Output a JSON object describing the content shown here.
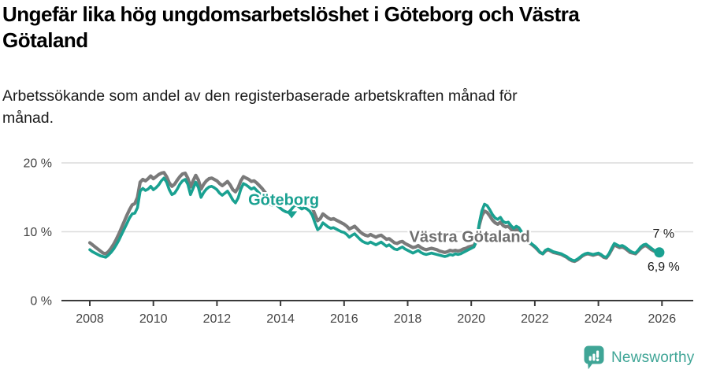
{
  "header": {
    "title": "Ungefär lika hög ungdomsarbetslöshet i Göteborg och Västra\nGötaland",
    "subtitle": "Arbetssökande som andel av den registerbaserade arbetskraften månad för\nmånad."
  },
  "chart_data": {
    "type": "line",
    "title": "Ungefär lika hög ungdomsarbetslöshet i Göteborg och Västra Götaland",
    "subtitle": "Arbetssökande som andel av den registerbaserade arbetskraften månad för månad.",
    "x_start": 2008.0,
    "x_step_months": 1,
    "x_axis": {
      "ticks": [
        2008,
        2010,
        2012,
        2014,
        2016,
        2018,
        2020,
        2022,
        2024,
        2026
      ],
      "labels": [
        "2008",
        "2010",
        "2012",
        "2014",
        "2016",
        "2018",
        "2020",
        "2022",
        "2024",
        "2026"
      ]
    },
    "y_axis": {
      "ticks": [
        0,
        10,
        20
      ],
      "labels": [
        "0 %",
        "10 %",
        "20 %"
      ],
      "range": [
        0,
        22
      ],
      "grid": true
    },
    "colors": {
      "goteborg": "#1aa191",
      "vastra_gotaland": "#7a7a7a",
      "grid": "#dcdcdc",
      "axis": "#3a3a3a"
    },
    "series": [
      {
        "name": "Västra Götaland",
        "color": "#7a7a7a",
        "label": {
          "text": "Västra Götaland",
          "x": 2019.95,
          "y": 8.5,
          "color": "#6f6f6f"
        },
        "last_value_label": "6,9 %",
        "values": [
          8.4,
          8.1,
          7.8,
          7.5,
          7.2,
          6.9,
          6.8,
          7.1,
          7.6,
          8.2,
          8.9,
          9.7,
          10.6,
          11.5,
          12.4,
          13.2,
          13.9,
          14.1,
          15.0,
          17.2,
          17.6,
          17.4,
          17.7,
          18.1,
          17.7,
          18.0,
          18.3,
          18.5,
          18.6,
          18.0,
          17.1,
          16.6,
          16.9,
          17.5,
          18.0,
          18.4,
          18.5,
          17.8,
          16.5,
          17.4,
          18.2,
          17.5,
          16.2,
          16.9,
          17.4,
          17.7,
          17.8,
          17.6,
          17.4,
          17.0,
          16.7,
          17.0,
          17.3,
          16.8,
          16.1,
          15.8,
          16.4,
          17.4,
          18.0,
          17.8,
          17.6,
          17.3,
          17.4,
          17.1,
          16.7,
          16.3,
          15.8,
          15.4,
          15.1,
          14.9,
          15.1,
          14.9,
          14.7,
          14.4,
          14.2,
          14.1,
          14.4,
          14.8,
          15.0,
          14.7,
          14.5,
          14.6,
          14.4,
          14.1,
          13.5,
          12.5,
          11.6,
          11.9,
          12.6,
          12.3,
          12.0,
          11.8,
          11.9,
          11.7,
          11.5,
          11.3,
          11.1,
          10.8,
          10.4,
          10.6,
          10.8,
          10.4,
          10.0,
          9.7,
          9.5,
          9.4,
          9.6,
          9.4,
          9.2,
          9.4,
          9.5,
          9.2,
          8.9,
          9.0,
          8.7,
          8.4,
          8.3,
          8.5,
          8.6,
          8.3,
          8.1,
          7.9,
          7.7,
          7.8,
          8.0,
          7.7,
          7.5,
          7.4,
          7.5,
          7.6,
          7.5,
          7.4,
          7.2,
          7.1,
          7.0,
          7.1,
          7.3,
          7.2,
          7.3,
          7.2,
          7.3,
          7.5,
          7.6,
          7.8,
          7.9,
          8.0,
          8.7,
          10.9,
          12.3,
          13.0,
          12.8,
          12.3,
          11.7,
          11.3,
          11.1,
          11.4,
          10.9,
          10.7,
          10.8,
          10.4,
          10.0,
          10.3,
          10.1,
          9.6,
          9.1,
          8.7,
          8.4,
          8.1,
          7.8,
          7.4,
          7.0,
          6.8,
          7.2,
          7.4,
          7.2,
          7.0,
          6.9,
          6.8,
          6.7,
          6.5,
          6.3,
          6.0,
          5.8,
          5.7,
          5.9,
          6.2,
          6.5,
          6.7,
          6.8,
          6.7,
          6.6,
          6.7,
          6.8,
          6.6,
          6.3,
          6.2,
          6.7,
          7.4,
          8.1,
          7.9,
          7.7,
          7.8,
          7.6,
          7.3,
          7.0,
          6.9,
          6.8,
          7.2,
          7.6,
          7.9,
          8.0,
          7.7,
          7.4,
          7.2,
          7.0,
          6.9
        ]
      },
      {
        "name": "Göteborg",
        "color": "#1aa191",
        "label": {
          "text": "Göteborg",
          "x": 2014.1,
          "y": 13.9,
          "color": "#1aa191",
          "pointer": {
            "x": 2014.35,
            "y": 12.4
          }
        },
        "last_value_label": "7 %",
        "end_dot": true,
        "values": [
          7.4,
          7.1,
          6.9,
          6.7,
          6.5,
          6.4,
          6.3,
          6.6,
          7.0,
          7.5,
          8.1,
          8.8,
          9.6,
          10.4,
          11.2,
          12.0,
          12.6,
          12.7,
          13.5,
          15.9,
          16.3,
          16.0,
          16.2,
          16.6,
          16.1,
          16.4,
          16.8,
          17.4,
          17.8,
          17.2,
          16.1,
          15.4,
          15.6,
          16.2,
          16.9,
          17.4,
          17.6,
          16.9,
          15.4,
          16.3,
          17.2,
          16.4,
          15.0,
          15.7,
          16.2,
          16.5,
          16.6,
          16.4,
          16.1,
          15.6,
          15.3,
          15.6,
          15.9,
          15.3,
          14.6,
          14.2,
          14.9,
          16.2,
          17.0,
          16.8,
          16.5,
          16.2,
          16.4,
          16.0,
          15.6,
          15.2,
          14.7,
          14.3,
          14.0,
          13.8,
          14.0,
          13.7,
          13.4,
          13.1,
          12.9,
          12.8,
          13.2,
          13.7,
          13.9,
          13.6,
          13.3,
          13.5,
          13.3,
          13.0,
          12.4,
          11.3,
          10.3,
          10.6,
          11.3,
          11.0,
          10.7,
          10.5,
          10.6,
          10.4,
          10.2,
          10.0,
          9.9,
          9.6,
          9.2,
          9.5,
          9.7,
          9.3,
          8.9,
          8.6,
          8.4,
          8.3,
          8.5,
          8.3,
          8.1,
          8.3,
          8.5,
          8.2,
          7.9,
          8.1,
          7.8,
          7.5,
          7.4,
          7.6,
          7.8,
          7.5,
          7.3,
          7.1,
          6.9,
          7.1,
          7.3,
          7.0,
          6.8,
          6.7,
          6.8,
          6.9,
          6.8,
          6.7,
          6.6,
          6.5,
          6.4,
          6.5,
          6.7,
          6.6,
          6.8,
          6.7,
          6.8,
          7.0,
          7.2,
          7.4,
          7.6,
          7.8,
          8.6,
          11.2,
          13.0,
          14.0,
          13.8,
          13.2,
          12.5,
          12.0,
          11.8,
          12.1,
          11.5,
          11.3,
          11.4,
          10.9,
          10.5,
          10.8,
          10.6,
          10.0,
          9.4,
          8.9,
          8.5,
          8.2,
          7.9,
          7.5,
          7.0,
          6.8,
          7.3,
          7.5,
          7.3,
          7.1,
          7.0,
          6.9,
          6.8,
          6.6,
          6.4,
          6.1,
          5.9,
          5.8,
          6.0,
          6.3,
          6.6,
          6.8,
          6.9,
          6.8,
          6.7,
          6.8,
          6.9,
          6.7,
          6.4,
          6.3,
          6.8,
          7.6,
          8.3,
          8.1,
          7.9,
          8.0,
          7.8,
          7.5,
          7.2,
          7.0,
          6.9,
          7.3,
          7.8,
          8.1,
          8.2,
          7.9,
          7.6,
          7.3,
          7.1,
          7.0
        ]
      }
    ],
    "annotations": [
      {
        "text": "7 %",
        "x": 2026.05,
        "y": 9.7
      },
      {
        "text": "6,9 %",
        "x": 2026.05,
        "y": 4.9
      }
    ],
    "legend_position": "inline-labels"
  },
  "footer": {
    "brand": "Newsworthy",
    "brand_color": "#3fa596",
    "logo_icon": "bar-chart-speech-bubble"
  }
}
